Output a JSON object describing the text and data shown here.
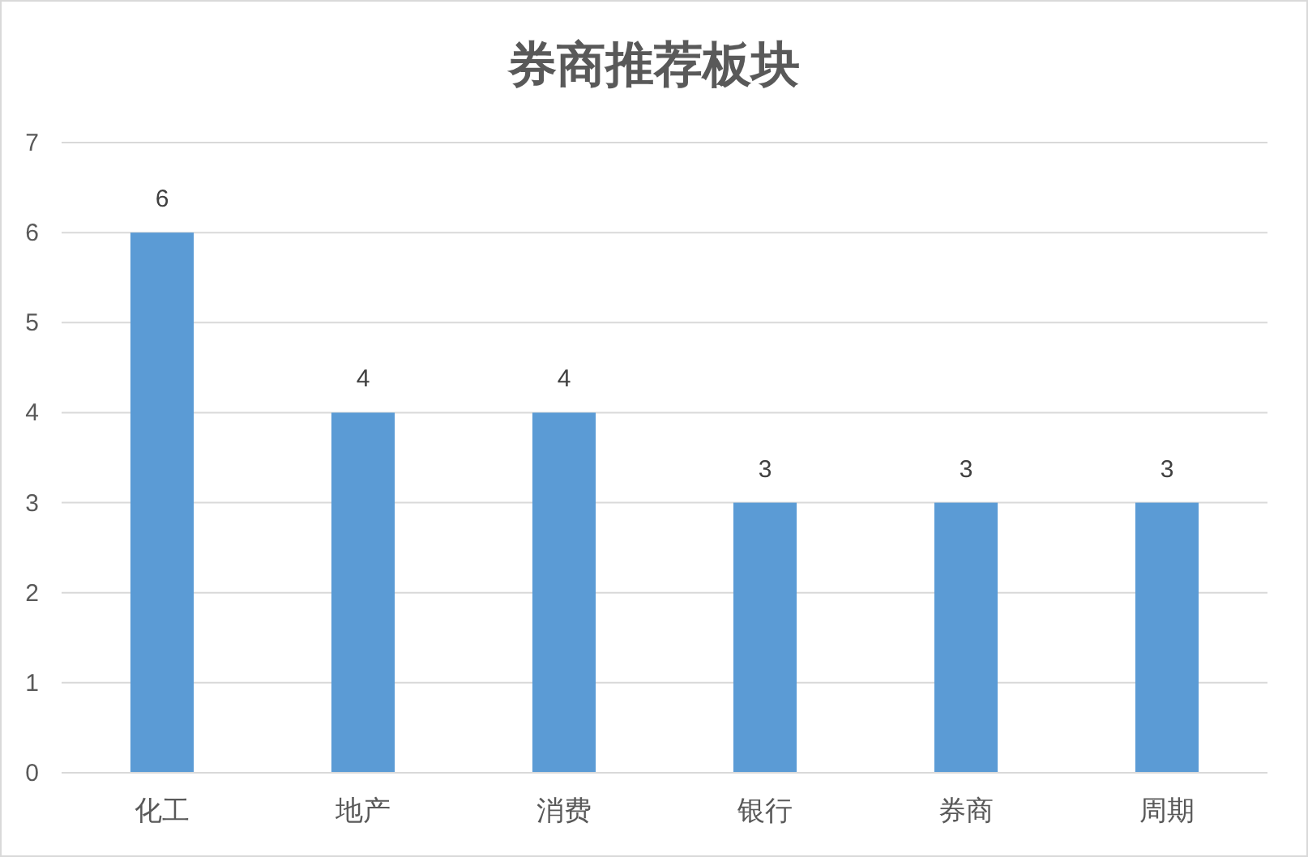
{
  "chart_data": {
    "type": "bar",
    "title": "券商推荐板块",
    "categories": [
      "化工",
      "地产",
      "消费",
      "银行",
      "券商",
      "周期"
    ],
    "values": [
      6,
      4,
      4,
      3,
      3,
      3
    ],
    "color": "#5b9bd5",
    "ylim": [
      0,
      7
    ],
    "yticks": [
      0,
      1,
      2,
      3,
      4,
      5,
      6,
      7
    ],
    "grid": "y",
    "data_labels": true
  }
}
